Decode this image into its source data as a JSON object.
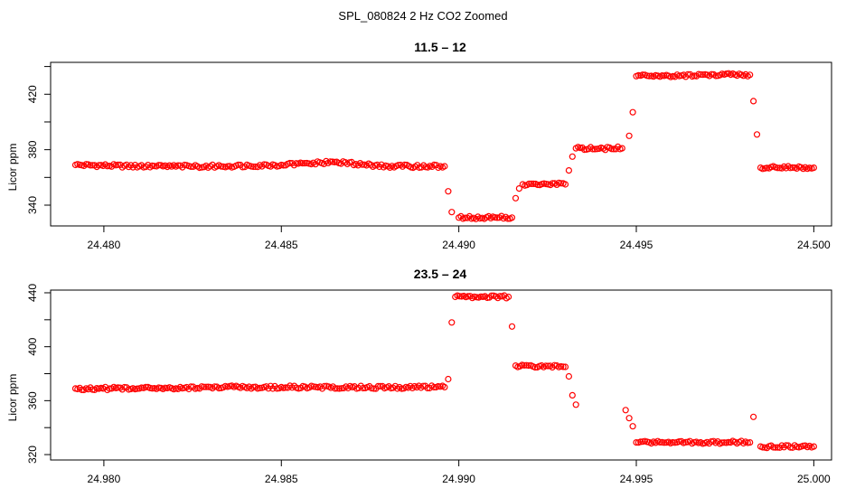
{
  "figure_title": "SPL_080824  2 Hz CO2 Zoomed",
  "point_color": "#ff0000",
  "chart_data": [
    {
      "type": "scatter",
      "title": "11.5 – 12",
      "xlabel": "",
      "ylabel": "Licor ppm",
      "xlim": [
        24.4785,
        24.5005
      ],
      "ylim": [
        325,
        443
      ],
      "xticks": [
        24.48,
        24.485,
        24.49,
        24.495,
        24.5
      ],
      "xtick_labels": [
        "24.480",
        "24.485",
        "24.490",
        "24.495",
        "24.500"
      ],
      "yticks": [
        340,
        380,
        420
      ],
      "ytick_labels": [
        "340",
        "380",
        "420"
      ],
      "y_minor_ticks": [
        360,
        400,
        440
      ],
      "x": [
        24.4792,
        24.481,
        24.483,
        24.485,
        24.4865,
        24.488,
        24.4896,
        24.4897,
        24.4898,
        24.49,
        24.4915,
        24.4916,
        24.4917,
        24.4918,
        24.493,
        24.4931,
        24.4932,
        24.4933,
        24.4946,
        24.4948,
        24.4949,
        24.495,
        24.497,
        24.4982,
        24.4983,
        24.4984,
        24.4985,
        24.5
      ],
      "y": [
        369,
        368,
        368,
        369,
        371,
        368,
        368,
        350,
        335,
        331,
        331,
        345,
        352,
        355,
        355,
        365,
        375,
        381,
        381,
        390,
        407,
        433,
        434,
        434,
        415,
        391,
        367,
        367
      ]
    },
    {
      "type": "scatter",
      "title": "23.5 – 24",
      "xlabel": "",
      "ylabel": "Licor ppm",
      "xlim": [
        24.9785,
        25.0005
      ],
      "ylim": [
        316,
        442
      ],
      "xticks": [
        24.98,
        24.985,
        24.99,
        24.995,
        25.0
      ],
      "xtick_labels": [
        "24.980",
        "24.985",
        "24.990",
        "24.995",
        "25.000"
      ],
      "yticks": [
        320,
        360,
        400,
        440
      ],
      "ytick_labels": [
        "320",
        "360",
        "400",
        "440"
      ],
      "y_minor_ticks": [
        340,
        380,
        420
      ],
      "x": [
        24.9792,
        24.981,
        24.983,
        24.985,
        24.987,
        24.9896,
        24.9897,
        24.9898,
        24.9899,
        24.9914,
        24.9915,
        24.9916,
        24.993,
        24.9931,
        24.9932,
        24.9933,
        24.9947,
        24.9948,
        24.9949,
        24.995,
        24.9982,
        24.9983,
        24.9985,
        25.0
      ],
      "y": [
        369,
        369,
        370,
        370,
        370,
        370,
        376,
        418,
        437,
        437,
        415,
        386,
        385,
        378,
        364,
        357,
        353,
        347,
        341,
        329,
        329,
        348,
        326,
        326
      ]
    }
  ]
}
